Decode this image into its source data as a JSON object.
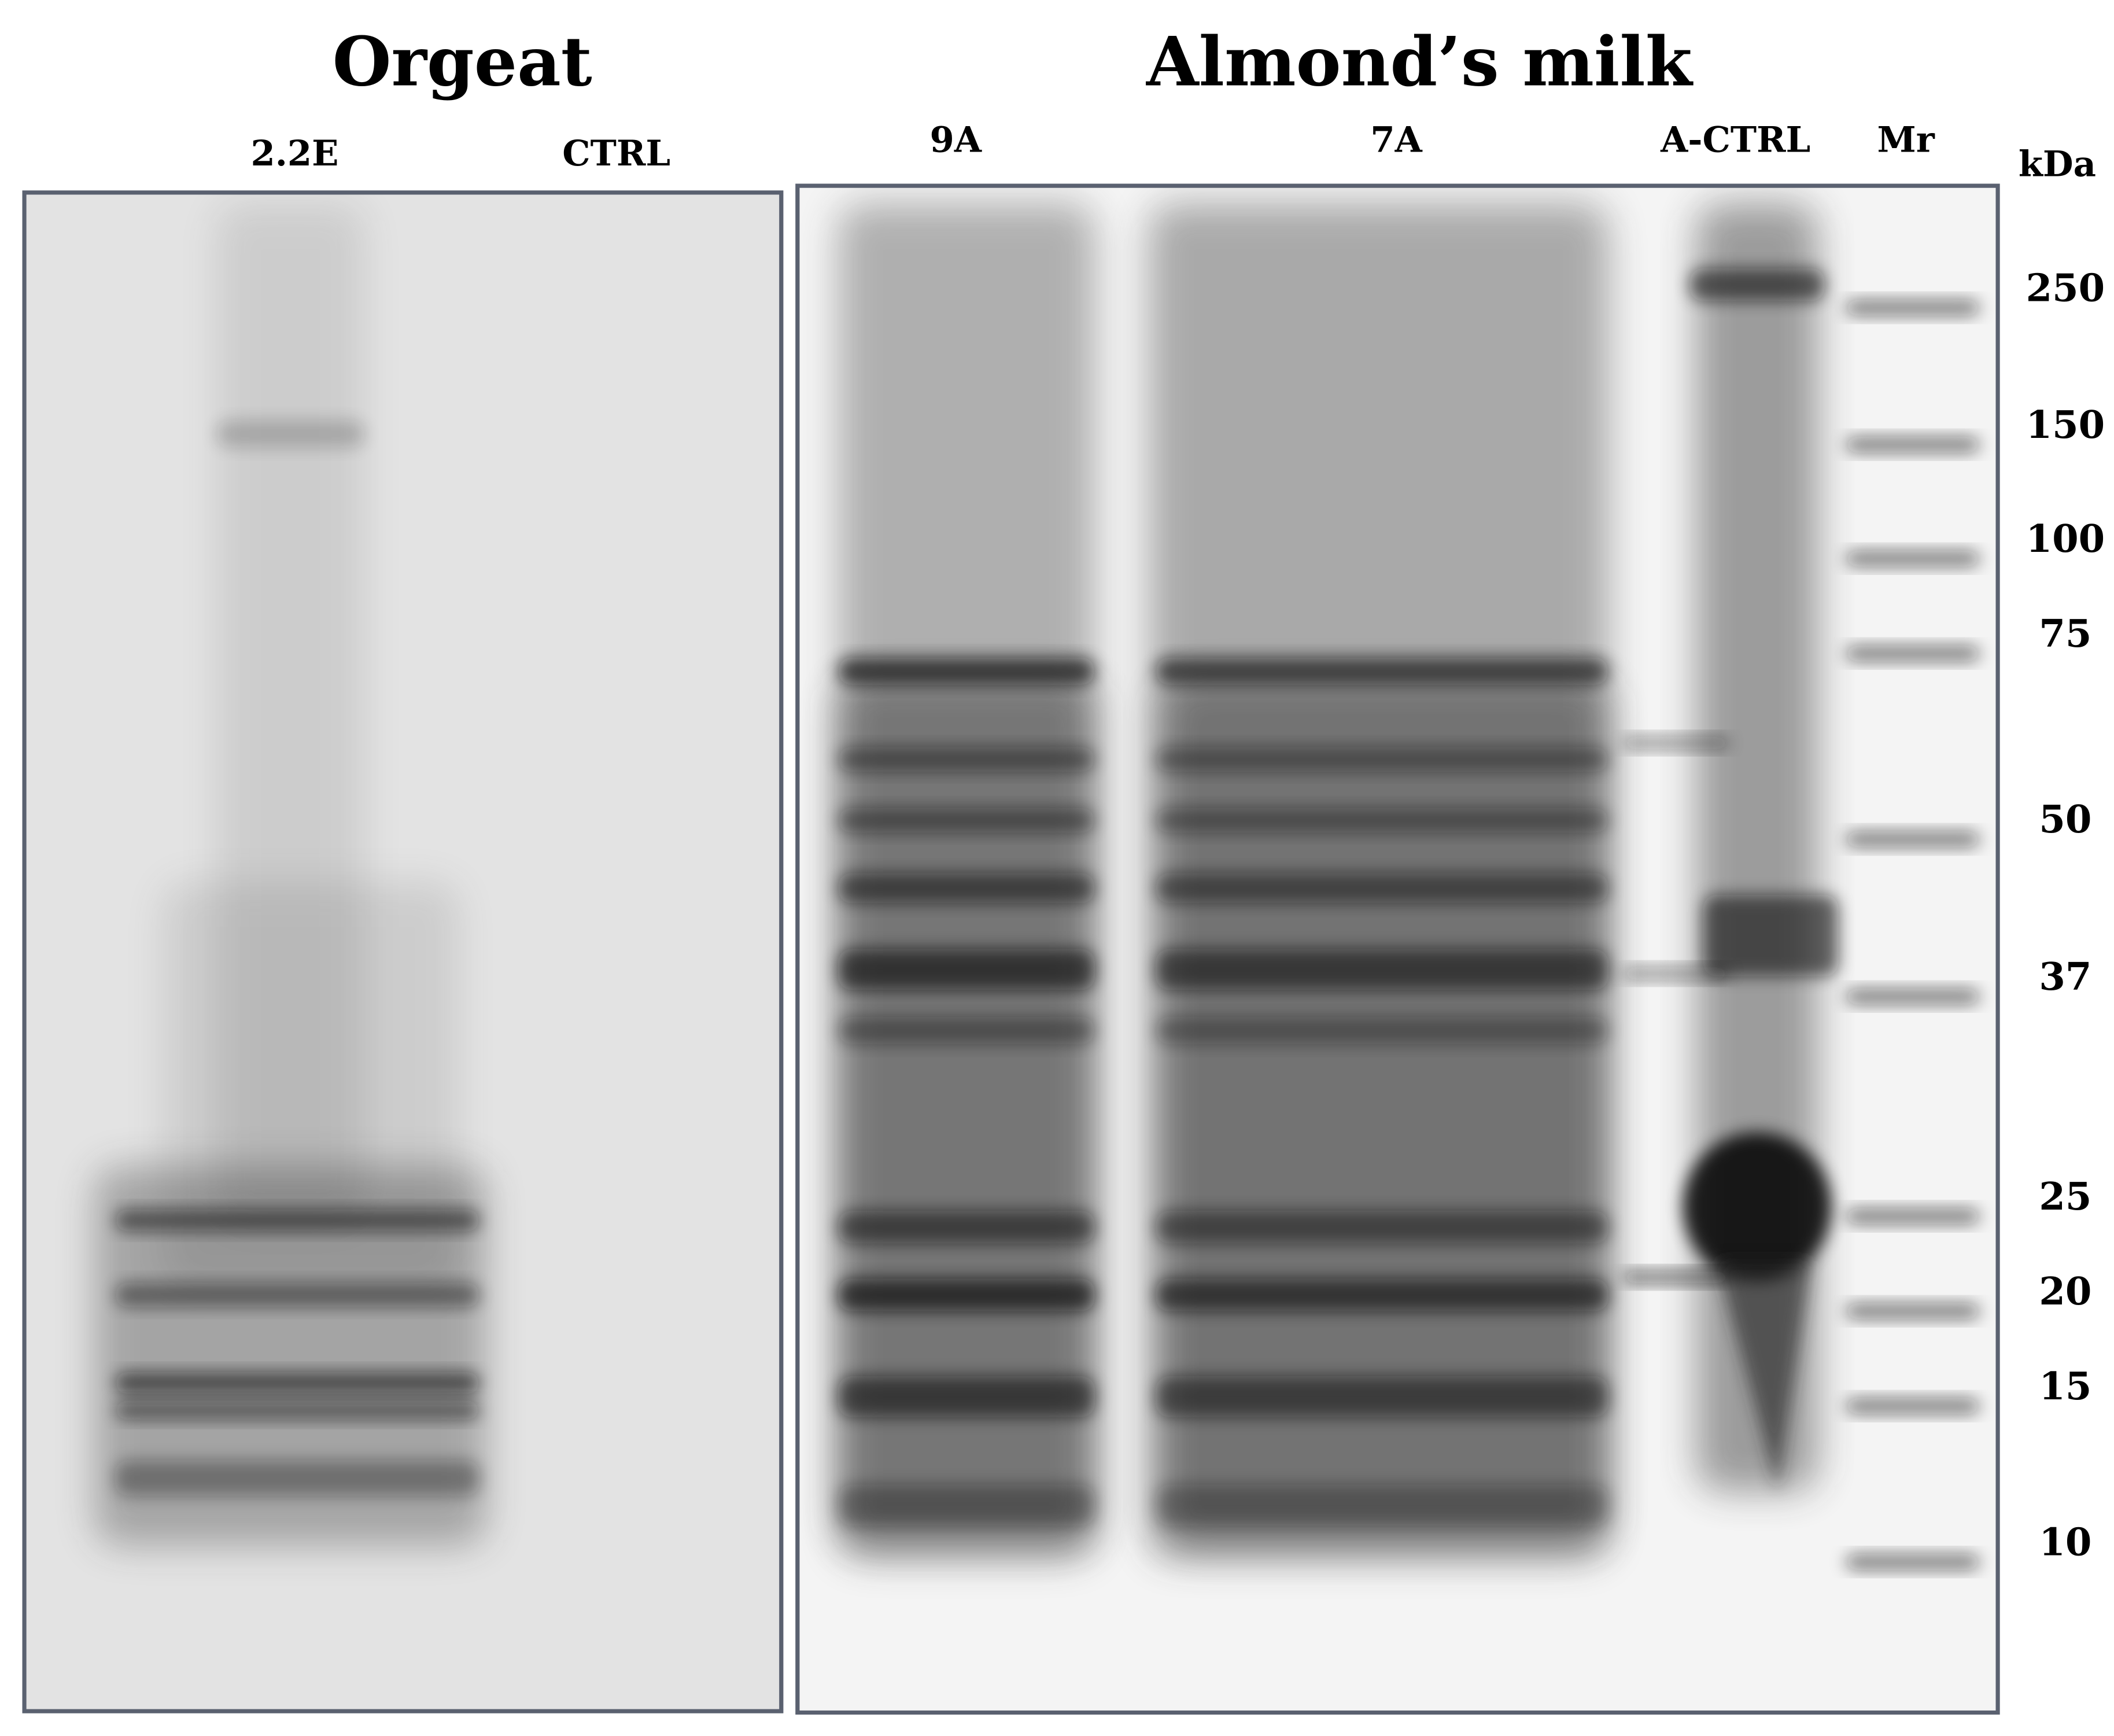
{
  "panels": [
    {
      "title": "Orgeat",
      "lanes": [
        "2.2E",
        "CTRL"
      ]
    },
    {
      "title": "Almond’s milk",
      "lanes": [
        "9A",
        "7A",
        "A-CTRL",
        "Mr"
      ]
    }
  ],
  "marker": {
    "unit": "kDa",
    "sizes": [
      250,
      150,
      100,
      75,
      50,
      37,
      25,
      20,
      15,
      10
    ]
  }
}
